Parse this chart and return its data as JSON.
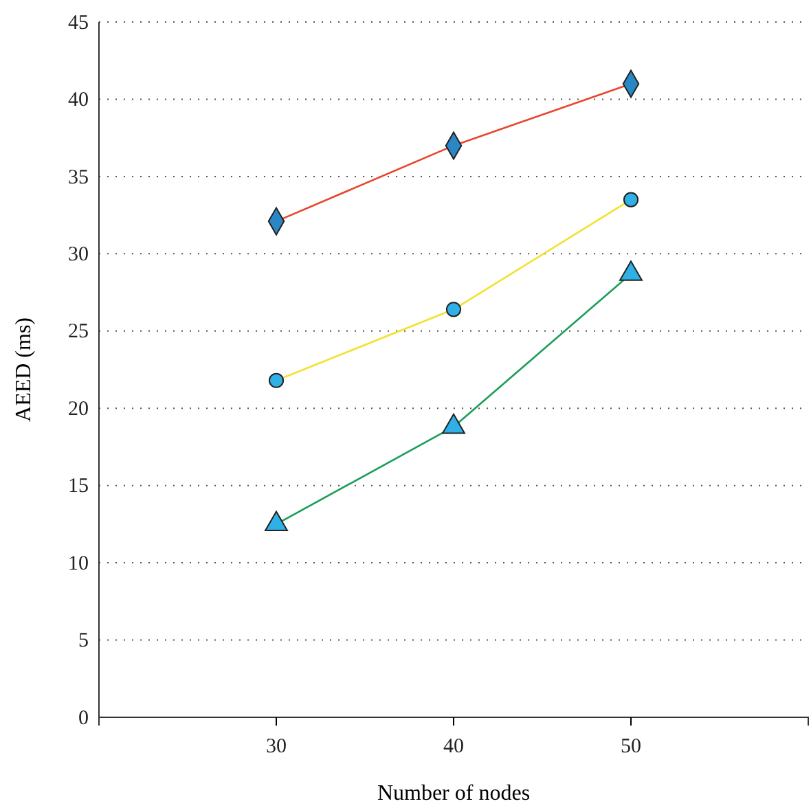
{
  "chart_data": {
    "type": "line",
    "xlabel": "Number of nodes",
    "ylabel": "AEED (ms)",
    "x": [
      30,
      40,
      50
    ],
    "xlim": [
      20,
      60
    ],
    "xticks": [
      30,
      40,
      50
    ],
    "ylim": [
      0,
      45
    ],
    "yticks": [
      0,
      5,
      10,
      15,
      20,
      25,
      30,
      35,
      40,
      45
    ],
    "grid": "y",
    "line_style": "solid",
    "series": [
      {
        "color": "#e8452c",
        "marker": "diamond",
        "values": [
          32.1,
          37,
          41
        ]
      },
      {
        "color": "#f2e22c",
        "marker": "circle",
        "values": [
          21.8,
          26.4,
          33.5
        ]
      },
      {
        "color": "#1a9e5a",
        "marker": "triangle",
        "values": [
          12.5,
          18.8,
          28.7
        ]
      }
    ]
  }
}
